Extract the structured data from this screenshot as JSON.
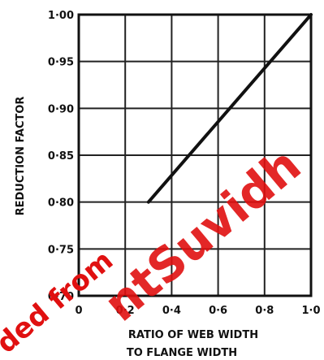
{
  "chart_data": {
    "type": "line",
    "xlabel_lines": [
      "RATIO OF WEB WIDTH",
      "TO FLANGE WIDTH"
    ],
    "ylabel": "REDUCTION FACTOR",
    "xlim": [
      0,
      1.0
    ],
    "ylim": [
      0.7,
      1.0
    ],
    "x_ticks": [
      0,
      0.2,
      0.4,
      0.6,
      0.8,
      1.0
    ],
    "x_tick_labels": [
      "0",
      "0·2",
      "0·4",
      "0·6",
      "0·8",
      "1·0"
    ],
    "y_ticks": [
      0.7,
      0.75,
      0.8,
      0.85,
      0.9,
      0.95,
      1.0
    ],
    "y_tick_labels": [
      "0·70",
      "0·75",
      "0·80",
      "0·85",
      "0·90",
      "0·95",
      "1·00"
    ],
    "grid": true,
    "series": [
      {
        "x": [
          0.3,
          1.0
        ],
        "y": [
          0.8,
          1.0
        ]
      }
    ]
  },
  "watermark": {
    "text_left": "ded from",
    "text_right": "ntSuvidh",
    "color": "#e01010"
  }
}
